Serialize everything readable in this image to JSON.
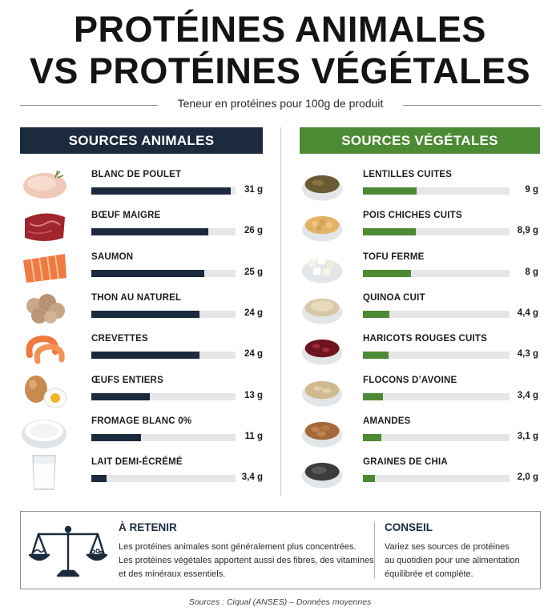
{
  "header": {
    "title_line1": "PROTÉINES ANIMALES",
    "title_line2": "VS PROTÉINES VÉGÉTALES",
    "subtitle": "Teneur en protéines pour 100g de produit"
  },
  "chart_data": [
    {
      "type": "bar",
      "title": "SOURCES ANIMALES",
      "categories": [
        "BLANC DE POULET",
        "BŒUF MAIGRE",
        "SAUMON",
        "THON AU NATUREL",
        "CREVETTES",
        "ŒUFS ENTIERS",
        "FROMAGE BLANC 0%",
        "LAIT DEMI-ÉCRÉMÉ"
      ],
      "values": [
        31,
        26,
        25,
        24,
        24,
        13,
        11,
        3.4
      ],
      "value_labels": [
        "31 g",
        "26 g",
        "25 g",
        "24 g",
        "24 g",
        "13 g",
        "11 g",
        "3,4 g"
      ],
      "icons": [
        "chicken-breast-icon",
        "beef-icon",
        "salmon-icon",
        "tuna-icon",
        "shrimp-icon",
        "eggs-icon",
        "fromage-blanc-icon",
        "milk-glass-icon"
      ],
      "xlim": [
        0,
        32
      ],
      "bar_color": "#1c2a3e",
      "track_color": "#e6e6e6"
    },
    {
      "type": "bar",
      "title": "SOURCES VÉGÉTALES",
      "categories": [
        "LENTILLES CUITES",
        "POIS CHICHES CUITS",
        "TOFU FERME",
        "QUINOA CUIT",
        "HARICOTS ROUGES CUITS",
        "FLOCONS D’AVOINE",
        "AMANDES",
        "GRAINES DE CHIA"
      ],
      "values": [
        9,
        8.9,
        8,
        4.4,
        4.3,
        3.4,
        3.1,
        2.0
      ],
      "value_labels": [
        "9 g",
        "8,9 g",
        "8 g",
        "4,4 g",
        "4,3 g",
        "3,4 g",
        "3,1 g",
        "2,0 g"
      ],
      "icons": [
        "lentils-icon",
        "chickpeas-icon",
        "tofu-icon",
        "quinoa-icon",
        "red-beans-icon",
        "oats-icon",
        "almonds-icon",
        "chia-seeds-icon"
      ],
      "xlim": [
        0,
        24.5
      ],
      "bar_color": "#4d8a34",
      "track_color": "#e6e6e6"
    }
  ],
  "takeaway": {
    "icon": "balance-scale-icon",
    "title": "À RETENIR",
    "lines": [
      "Les protéines animales sont généralement plus concentrées.",
      "Les protéines végétales apportent aussi des fibres, des vitamines",
      "et des minéraux essentiels."
    ]
  },
  "advice": {
    "title": "CONSEIL",
    "lines": [
      "Variez ses sources de protéines",
      "au quotidien pour une alimentation",
      "équilibrée et complète."
    ]
  },
  "footer": {
    "source": "Sources : Ciqual (ANSES) – Données moyennes"
  }
}
